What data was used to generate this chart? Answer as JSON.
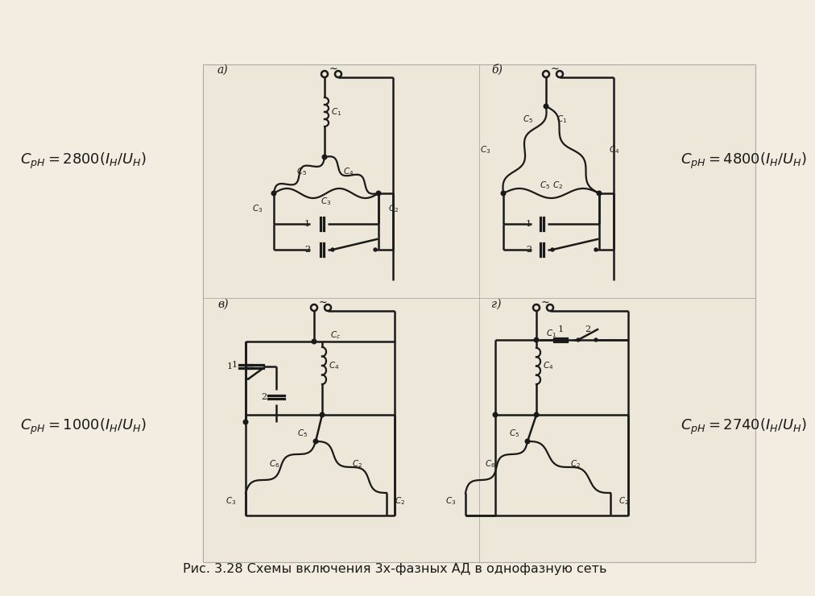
{
  "bg_color": "#f2ede0",
  "panel_bg": "#ece7d8",
  "lc": "#1a1a1a",
  "caption": "Рис. 3.28 Схемы включения 3х-фазных АД в однофазную сеть",
  "label_a": "а)",
  "label_b": "б)",
  "label_v": "в)",
  "label_g": "г)",
  "form_a": "$C_{pH} = 2800(I_H/U_H)$",
  "form_b": "$C_{pH} = 4800(I_H/U_H)$",
  "form_v": "$C_{pH} = 1000(I_H/U_H)$",
  "form_g": "$C_{pH} = 2740(I_H/U_H)$"
}
